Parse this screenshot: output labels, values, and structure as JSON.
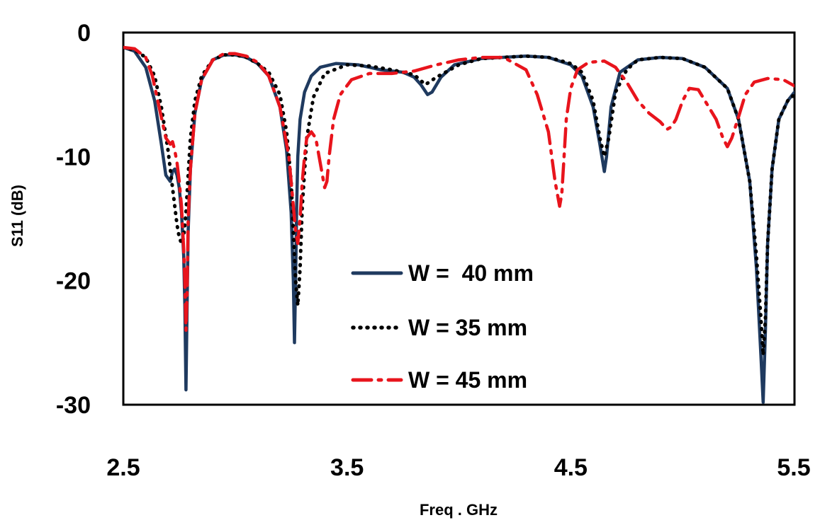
{
  "chart_data": {
    "type": "line",
    "title": "",
    "xlabel": "Freq . GHz",
    "ylabel": "S11 (dB)",
    "xlim": [
      2.5,
      5.5
    ],
    "ylim": [
      -30,
      0
    ],
    "xticks": [
      "2.5",
      "3.5",
      "4.5",
      "5.5"
    ],
    "yticks": [
      "0",
      "-10",
      "-20",
      "-30"
    ],
    "grid": false,
    "legend_position": "center",
    "series": [
      {
        "name": "W =  40 mm",
        "color": "#1f3a5f",
        "style": "solid",
        "x": [
          2.5,
          2.55,
          2.6,
          2.64,
          2.67,
          2.69,
          2.71,
          2.72,
          2.73,
          2.74,
          2.75,
          2.76,
          2.77,
          2.775,
          2.78,
          2.785,
          2.79,
          2.8,
          2.82,
          2.85,
          2.9,
          2.95,
          3.0,
          3.05,
          3.1,
          3.15,
          3.2,
          3.23,
          3.25,
          3.26,
          3.265,
          3.27,
          3.275,
          3.28,
          3.29,
          3.31,
          3.34,
          3.38,
          3.45,
          3.55,
          3.65,
          3.75,
          3.8,
          3.83,
          3.86,
          3.88,
          3.92,
          3.98,
          4.1,
          4.3,
          4.4,
          4.5,
          4.55,
          4.6,
          4.63,
          4.65,
          4.66,
          4.68,
          4.72,
          4.8,
          4.9,
          5.0,
          5.1,
          5.2,
          5.25,
          5.3,
          5.33,
          5.35,
          5.36,
          5.37,
          5.38,
          5.4,
          5.43,
          5.47,
          5.5
        ],
        "y": [
          -1.2,
          -1.5,
          -2.8,
          -5.5,
          -9.0,
          -11.5,
          -12.0,
          -11.2,
          -11.0,
          -11.5,
          -12.5,
          -14.5,
          -18.0,
          -22.0,
          -28.8,
          -22.0,
          -16.0,
          -11.0,
          -6.5,
          -3.8,
          -2.2,
          -1.8,
          -1.8,
          -2.0,
          -2.5,
          -3.5,
          -6.0,
          -9.5,
          -14.5,
          -20.0,
          -25.0,
          -20.0,
          -14.0,
          -10.0,
          -7.0,
          -4.8,
          -3.5,
          -2.8,
          -2.5,
          -2.6,
          -3.0,
          -3.2,
          -3.6,
          -4.2,
          -5.0,
          -4.8,
          -3.6,
          -2.6,
          -2.1,
          -1.9,
          -2.0,
          -2.6,
          -3.5,
          -6.0,
          -9.0,
          -11.2,
          -10.0,
          -6.0,
          -3.2,
          -2.2,
          -2.0,
          -2.1,
          -2.8,
          -4.5,
          -7.0,
          -12.0,
          -19.0,
          -26.0,
          -29.8,
          -24.0,
          -17.0,
          -11.0,
          -7.0,
          -5.5,
          -4.8
        ]
      },
      {
        "name": "W = 35 mm",
        "color": "#000000",
        "style": "dotted",
        "x": [
          2.5,
          2.55,
          2.6,
          2.64,
          2.67,
          2.7,
          2.72,
          2.74,
          2.75,
          2.76,
          2.77,
          2.78,
          2.79,
          2.8,
          2.82,
          2.85,
          2.9,
          2.95,
          3.0,
          3.05,
          3.1,
          3.15,
          3.2,
          3.23,
          3.25,
          3.26,
          3.27,
          3.28,
          3.29,
          3.3,
          3.32,
          3.35,
          3.4,
          3.5,
          3.6,
          3.7,
          3.8,
          3.85,
          3.9,
          4.0,
          4.1,
          4.3,
          4.4,
          4.5,
          4.55,
          4.6,
          4.63,
          4.65,
          4.67,
          4.7,
          4.75,
          4.8,
          4.9,
          5.0,
          5.1,
          5.2,
          5.25,
          5.3,
          5.33,
          5.35,
          5.36,
          5.37,
          5.38,
          5.4,
          5.43,
          5.47,
          5.5
        ],
        "y": [
          -1.2,
          -1.4,
          -2.0,
          -3.5,
          -6.0,
          -9.5,
          -12.5,
          -15.5,
          -16.5,
          -17.0,
          -16.5,
          -14.5,
          -11.5,
          -8.5,
          -5.5,
          -3.5,
          -2.2,
          -1.8,
          -1.8,
          -2.0,
          -2.5,
          -3.2,
          -5.0,
          -8.0,
          -12.0,
          -16.0,
          -20.0,
          -22.0,
          -19.0,
          -14.0,
          -8.5,
          -5.2,
          -3.3,
          -2.6,
          -2.7,
          -3.0,
          -3.4,
          -4.2,
          -3.6,
          -2.6,
          -2.1,
          -1.9,
          -2.0,
          -2.5,
          -3.2,
          -5.5,
          -8.5,
          -10.0,
          -8.5,
          -4.8,
          -3.0,
          -2.2,
          -2.0,
          -2.1,
          -2.8,
          -4.5,
          -7.0,
          -12.0,
          -18.0,
          -23.0,
          -26.0,
          -23.0,
          -17.0,
          -11.0,
          -7.0,
          -5.5,
          -5.0
        ]
      },
      {
        "name": "W = 45 mm",
        "color": "#e8141c",
        "style": "dashdot",
        "x": [
          2.5,
          2.55,
          2.6,
          2.63,
          2.66,
          2.69,
          2.71,
          2.72,
          2.73,
          2.74,
          2.75,
          2.76,
          2.77,
          2.775,
          2.78,
          2.785,
          2.79,
          2.8,
          2.82,
          2.85,
          2.9,
          2.95,
          3.0,
          3.05,
          3.1,
          3.15,
          3.2,
          3.24,
          3.26,
          3.27,
          3.28,
          3.29,
          3.3,
          3.31,
          3.32,
          3.34,
          3.36,
          3.38,
          3.4,
          3.41,
          3.42,
          3.44,
          3.47,
          3.52,
          3.6,
          3.7,
          3.8,
          3.9,
          4.0,
          4.1,
          4.2,
          4.3,
          4.35,
          4.4,
          4.43,
          4.45,
          4.46,
          4.47,
          4.48,
          4.5,
          4.53,
          4.58,
          4.65,
          4.7,
          4.75,
          4.8,
          4.85,
          4.9,
          4.93,
          4.95,
          4.97,
          5.0,
          5.03,
          5.07,
          5.1,
          5.15,
          5.18,
          5.2,
          5.22,
          5.25,
          5.28,
          5.32,
          5.38,
          5.45,
          5.5
        ],
        "y": [
          -1.2,
          -1.3,
          -2.0,
          -3.5,
          -6.0,
          -8.5,
          -9.0,
          -8.8,
          -9.5,
          -10.5,
          -12.0,
          -14.0,
          -17.5,
          -20.0,
          -24.0,
          -21.0,
          -15.0,
          -11.0,
          -6.5,
          -3.8,
          -2.2,
          -1.7,
          -1.7,
          -1.9,
          -2.4,
          -3.5,
          -6.0,
          -10.0,
          -14.0,
          -16.0,
          -17.0,
          -15.0,
          -12.0,
          -10.0,
          -8.5,
          -8.0,
          -8.5,
          -10.5,
          -12.5,
          -12.0,
          -10.0,
          -7.0,
          -5.0,
          -3.8,
          -3.3,
          -3.3,
          -3.1,
          -2.6,
          -2.2,
          -2.0,
          -2.0,
          -3.0,
          -5.0,
          -8.0,
          -12.0,
          -14.0,
          -13.0,
          -10.0,
          -7.0,
          -4.5,
          -3.0,
          -2.4,
          -2.3,
          -2.8,
          -4.0,
          -5.5,
          -6.5,
          -7.2,
          -7.8,
          -7.6,
          -7.0,
          -5.5,
          -4.5,
          -4.6,
          -5.5,
          -7.0,
          -8.5,
          -9.2,
          -8.5,
          -6.8,
          -5.0,
          -4.0,
          -3.7,
          -3.8,
          -4.3
        ]
      }
    ]
  }
}
